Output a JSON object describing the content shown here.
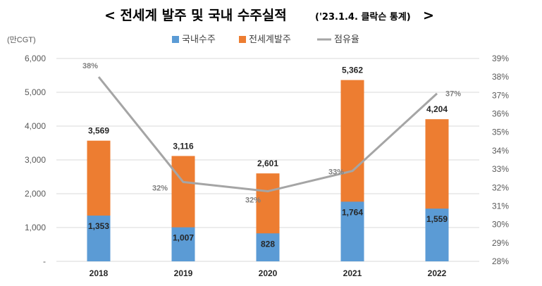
{
  "title": {
    "main": "< 전세계 발주 및 국내 수주실적",
    "sub": "('23.1.4. 클락슨 통계)",
    "close": ">"
  },
  "chart_data": {
    "type": "bar",
    "stacked": true,
    "unit_label": "(만CGT)",
    "categories": [
      "2018",
      "2019",
      "2020",
      "2021",
      "2022"
    ],
    "series": [
      {
        "name": "국내수주",
        "values": [
          1353,
          1007,
          828,
          1764,
          1559
        ],
        "color": "#5b9bd5"
      },
      {
        "name": "전세계발주",
        "values": [
          3569,
          3116,
          2601,
          5362,
          4204
        ],
        "color": "#ed7d31"
      },
      {
        "name": "점유율",
        "type": "line",
        "axis": "right",
        "values": [
          38,
          32.3,
          31.8,
          32.9,
          37.1
        ],
        "labels": [
          "38%",
          "32%",
          "32%",
          "33%",
          "37%"
        ],
        "color": "#a5a5a5"
      }
    ],
    "left_axis": {
      "ylim": [
        0,
        6000
      ],
      "ticks": [
        "-",
        "1,000",
        "2,000",
        "3,000",
        "4,000",
        "5,000",
        "6,000"
      ]
    },
    "right_axis": {
      "ylim": [
        28,
        39
      ],
      "ticks": [
        "28%",
        "29%",
        "30%",
        "31%",
        "32%",
        "33%",
        "34%",
        "35%",
        "36%",
        "37%",
        "38%",
        "39%"
      ]
    },
    "bar_labels": {
      "world": [
        "3,569",
        "3,116",
        "2,601",
        "5,362",
        "4,204"
      ],
      "domestic": [
        "1,353",
        "1,007",
        "828",
        "1,764",
        "1,559"
      ]
    },
    "legend_position": "top",
    "grid": true
  }
}
